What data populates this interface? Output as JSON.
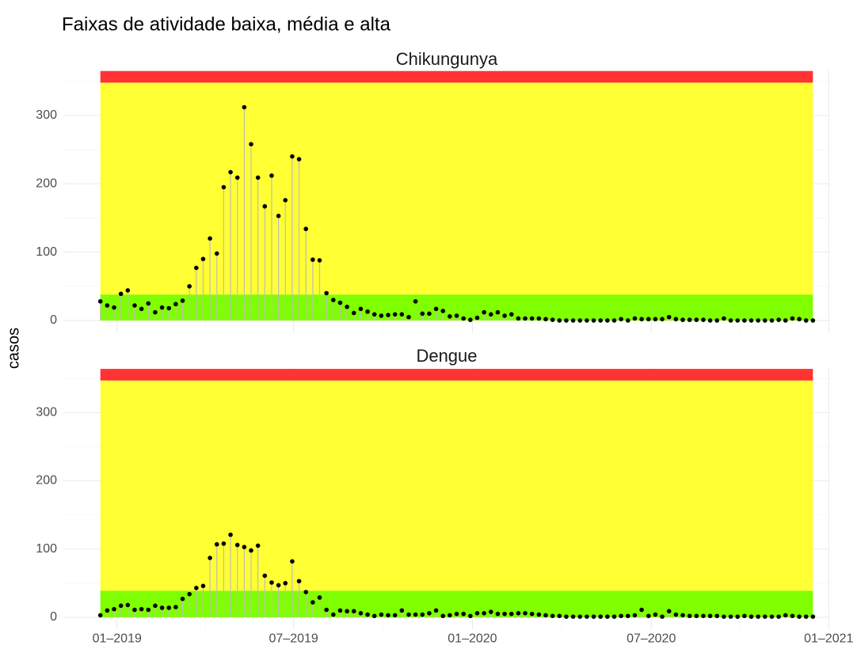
{
  "title": "Faixas de atividade baixa, média e alta",
  "y_label": "casos",
  "chart_data": [
    {
      "type": "lollipop",
      "title": "Chikungunya",
      "x": [
        0,
        1,
        2,
        3,
        4,
        5,
        6,
        7,
        8,
        9,
        10,
        11,
        12,
        13,
        14,
        15,
        16,
        17,
        18,
        19,
        20,
        21,
        22,
        23,
        24,
        25,
        26,
        27,
        28,
        29,
        30,
        31,
        32,
        33,
        34,
        35,
        36,
        37,
        38,
        39,
        40,
        41,
        42,
        43,
        44,
        45,
        46,
        47,
        48,
        49,
        50,
        51,
        52,
        53,
        54,
        55,
        56,
        57,
        58,
        59,
        60,
        61,
        62,
        63,
        64,
        65,
        66,
        67,
        68,
        69,
        70,
        71,
        72,
        73,
        74,
        75,
        76,
        77,
        78,
        79,
        80,
        81,
        82,
        83,
        84,
        85,
        86,
        87,
        88,
        89,
        90,
        91,
        92,
        93,
        94,
        95,
        96,
        97,
        98,
        99,
        100,
        101,
        102,
        103,
        104
      ],
      "values": [
        28,
        22,
        19,
        39,
        44,
        22,
        17,
        25,
        12,
        19,
        18,
        24,
        29,
        50,
        77,
        90,
        120,
        98,
        195,
        217,
        209,
        312,
        258,
        209,
        167,
        212,
        153,
        176,
        240,
        236,
        134,
        89,
        88,
        40,
        30,
        26,
        20,
        11,
        17,
        13,
        9,
        7,
        8,
        9,
        9,
        5,
        28,
        10,
        10,
        17,
        14,
        6,
        7,
        3,
        1,
        4,
        12,
        9,
        12,
        7,
        9,
        3,
        3,
        3,
        3,
        2,
        1,
        0,
        0,
        0,
        0,
        0,
        0,
        0,
        0,
        0,
        2,
        0,
        3,
        2,
        2,
        2,
        2,
        5,
        2,
        1,
        1,
        1,
        1,
        0,
        0,
        3,
        0,
        0,
        0,
        0,
        0,
        0,
        0,
        1,
        0,
        3,
        2,
        0,
        0
      ],
      "color": "#000000",
      "stem_color": "#bdbdbd",
      "bands": [
        {
          "from": 0,
          "to": 38,
          "color": "#7fff00"
        },
        {
          "from": 38,
          "to": 348,
          "color": "#ffff33"
        },
        {
          "from": 348,
          "to": 365,
          "color": "#ff3333"
        }
      ],
      "xlim": [
        -5.4,
        106.5
      ],
      "ylim": [
        -18,
        367
      ],
      "yticks": [
        0,
        100,
        200,
        300
      ],
      "xticks": [
        {
          "value": 2.43,
          "label": "01–2019"
        },
        {
          "value": 28.2,
          "label": "07–2019"
        },
        {
          "value": 54.3,
          "label": "01–2020"
        },
        {
          "value": 80.4,
          "label": "07–2020"
        },
        {
          "value": 106.3,
          "label": "01–2021"
        }
      ],
      "grid": true
    },
    {
      "type": "lollipop",
      "title": "Dengue",
      "x": [
        0,
        1,
        2,
        3,
        4,
        5,
        6,
        7,
        8,
        9,
        10,
        11,
        12,
        13,
        14,
        15,
        16,
        17,
        18,
        19,
        20,
        21,
        22,
        23,
        24,
        25,
        26,
        27,
        28,
        29,
        30,
        31,
        32,
        33,
        34,
        35,
        36,
        37,
        38,
        39,
        40,
        41,
        42,
        43,
        44,
        45,
        46,
        47,
        48,
        49,
        50,
        51,
        52,
        53,
        54,
        55,
        56,
        57,
        58,
        59,
        60,
        61,
        62,
        63,
        64,
        65,
        66,
        67,
        68,
        69,
        70,
        71,
        72,
        73,
        74,
        75,
        76,
        77,
        78,
        79,
        80,
        81,
        82,
        83,
        84,
        85,
        86,
        87,
        88,
        89,
        90,
        91,
        92,
        93,
        94,
        95,
        96,
        97,
        98,
        99,
        100,
        101,
        102,
        103,
        104
      ],
      "values": [
        3,
        10,
        12,
        17,
        18,
        11,
        12,
        11,
        17,
        14,
        14,
        15,
        27,
        34,
        43,
        46,
        87,
        107,
        108,
        121,
        106,
        103,
        98,
        105,
        61,
        51,
        47,
        50,
        82,
        53,
        37,
        22,
        29,
        11,
        4,
        10,
        9,
        9,
        6,
        4,
        2,
        4,
        3,
        3,
        10,
        4,
        4,
        4,
        6,
        10,
        2,
        3,
        5,
        5,
        2,
        6,
        6,
        8,
        5,
        5,
        5,
        6,
        6,
        5,
        4,
        3,
        2,
        2,
        1,
        1,
        1,
        1,
        1,
        1,
        1,
        1,
        2,
        2,
        3,
        11,
        2,
        4,
        1,
        9,
        4,
        3,
        2,
        2,
        2,
        2,
        2,
        1,
        1,
        1,
        2,
        1,
        1,
        1,
        1,
        1,
        3,
        2,
        1,
        1,
        1
      ],
      "color": "#000000",
      "stem_color": "#bdbdbd",
      "bands": [
        {
          "from": 0,
          "to": 39,
          "color": "#7fff00"
        },
        {
          "from": 39,
          "to": 347,
          "color": "#ffff33"
        },
        {
          "from": 347,
          "to": 364,
          "color": "#ff3333"
        }
      ],
      "xlim": [
        -5.4,
        106.5
      ],
      "ylim": [
        -18,
        367
      ],
      "yticks": [
        0,
        100,
        200,
        300
      ],
      "xticks": [
        {
          "value": 2.43,
          "label": "01–2019"
        },
        {
          "value": 28.2,
          "label": "07–2019"
        },
        {
          "value": 54.3,
          "label": "01–2020"
        },
        {
          "value": 80.4,
          "label": "07–2020"
        },
        {
          "value": 106.3,
          "label": "01–2021"
        }
      ],
      "grid": true
    }
  ]
}
